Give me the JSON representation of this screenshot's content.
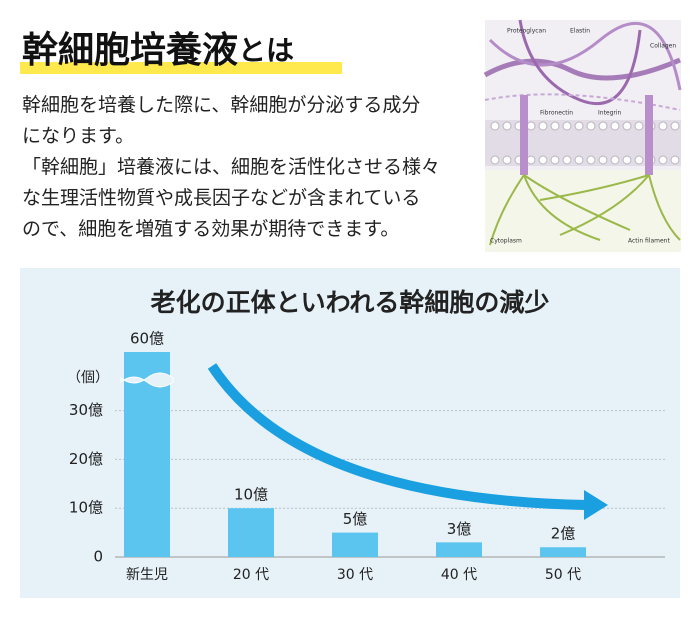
{
  "header": {
    "title": "幹細胞培養液",
    "title_suffix": "とは"
  },
  "paragraph": {
    "lines": [
      "幹細胞を培養した際に、幹細胞が分泌する成分",
      "になります。",
      "「幹細胞」培養液には、細胞を活性化させる様々",
      "な生理活性物質や成長因子などが含まれている",
      "ので、細胞を増殖する効果が期待できます。"
    ]
  },
  "image": {
    "labels": [
      "Proteoglycan",
      "Elastin",
      "Collagen",
      "Fibronectin",
      "Integrin",
      "Cytoplasm",
      "Actin filament"
    ]
  },
  "chart_data": {
    "type": "bar",
    "title": "老化の正体といわれる幹細胞の減少",
    "y_unit": "（個）",
    "categories": [
      "新生児",
      "20 代",
      "30 代",
      "40 代",
      "50 代"
    ],
    "values": [
      60,
      10,
      5,
      3,
      2
    ],
    "value_labels": [
      "60億",
      "10億",
      "5億",
      "3億",
      "2億"
    ],
    "color": "#5bc5f0",
    "ylim": [
      0,
      42
    ],
    "yticks": [
      0,
      {
        "value": 10,
        "label": "10億"
      },
      {
        "value": 20,
        "label": "20億"
      },
      {
        "value": 30,
        "label": "30億"
      }
    ],
    "grid": true,
    "axis_break": true
  }
}
